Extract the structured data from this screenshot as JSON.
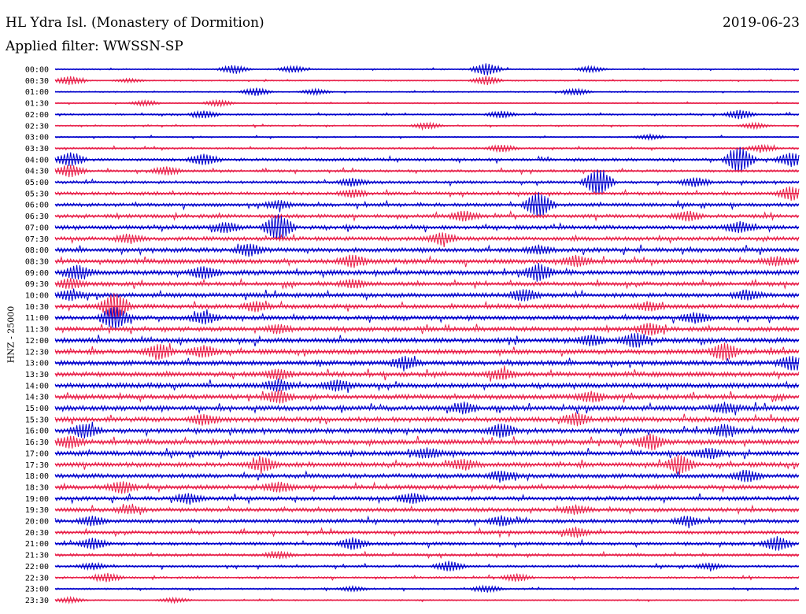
{
  "header": {
    "title": "HL Ydra Isl. (Monastery of Dormition)",
    "date": "2019-06-23",
    "filter": "Applied filter: WWSSN-SP"
  },
  "chart_data": {
    "type": "line",
    "title": "HL Ydra Isl. (Monastery of Dormition)",
    "ylabel": "HNZ - 25000",
    "xlabel": "",
    "colors": [
      "#0000cc",
      "#e8214a"
    ],
    "rows": [
      {
        "label": "00:00",
        "color": "#0000cc",
        "noise": 0.12,
        "events": [
          [
            0.58,
            1.4
          ],
          [
            0.24,
            0.9
          ],
          [
            0.32,
            0.7
          ],
          [
            0.72,
            0.6
          ]
        ]
      },
      {
        "label": "00:30",
        "color": "#e8214a",
        "noise": 0.1,
        "events": [
          [
            0.02,
            1.0
          ],
          [
            0.58,
            1.0
          ],
          [
            0.1,
            0.4
          ]
        ]
      },
      {
        "label": "01:00",
        "color": "#0000cc",
        "noise": 0.1,
        "events": [
          [
            0.27,
            0.9
          ],
          [
            0.35,
            0.6
          ],
          [
            0.7,
            0.7
          ]
        ]
      },
      {
        "label": "01:30",
        "color": "#e8214a",
        "noise": 0.1,
        "events": [
          [
            0.12,
            0.6
          ],
          [
            0.22,
            0.7
          ]
        ]
      },
      {
        "label": "02:00",
        "color": "#0000cc",
        "noise": 0.15,
        "events": [
          [
            0.2,
            0.8
          ],
          [
            0.6,
            0.7
          ],
          [
            0.92,
            1.0
          ]
        ]
      },
      {
        "label": "02:30",
        "color": "#e8214a",
        "noise": 0.12,
        "events": [
          [
            0.5,
            0.7
          ],
          [
            0.94,
            0.6
          ]
        ]
      },
      {
        "label": "03:00",
        "color": "#0000cc",
        "noise": 0.12,
        "events": [
          [
            0.8,
            0.5
          ]
        ]
      },
      {
        "label": "03:30",
        "color": "#e8214a",
        "noise": 0.18,
        "events": [
          [
            0.6,
            0.7
          ],
          [
            0.95,
            0.7
          ]
        ]
      },
      {
        "label": "04:00",
        "color": "#0000cc",
        "noise": 0.25,
        "events": [
          [
            0.92,
            3.0
          ],
          [
            0.02,
            1.5
          ],
          [
            0.2,
            1.2
          ],
          [
            0.99,
            1.5
          ]
        ]
      },
      {
        "label": "04:30",
        "color": "#e8214a",
        "noise": 0.22,
        "events": [
          [
            0.02,
            1.4
          ],
          [
            0.15,
            0.9
          ]
        ]
      },
      {
        "label": "05:00",
        "color": "#0000cc",
        "noise": 0.25,
        "events": [
          [
            0.73,
            3.0
          ],
          [
            0.4,
            0.8
          ],
          [
            0.86,
            1.0
          ]
        ]
      },
      {
        "label": "05:30",
        "color": "#e8214a",
        "noise": 0.28,
        "events": [
          [
            0.99,
            1.5
          ],
          [
            0.4,
            0.8
          ]
        ]
      },
      {
        "label": "06:00",
        "color": "#0000cc",
        "noise": 0.3,
        "events": [
          [
            0.65,
            2.8
          ],
          [
            0.3,
            0.9
          ]
        ]
      },
      {
        "label": "06:30",
        "color": "#e8214a",
        "noise": 0.32,
        "events": [
          [
            0.55,
            1.0
          ],
          [
            0.85,
            1.0
          ]
        ]
      },
      {
        "label": "07:00",
        "color": "#0000cc",
        "noise": 0.35,
        "events": [
          [
            0.3,
            3.0
          ],
          [
            0.23,
            1.0
          ],
          [
            0.92,
            1.2
          ]
        ]
      },
      {
        "label": "07:30",
        "color": "#e8214a",
        "noise": 0.35,
        "events": [
          [
            0.52,
            1.2
          ],
          [
            0.1,
            0.9
          ]
        ]
      },
      {
        "label": "08:00",
        "color": "#0000cc",
        "noise": 0.38,
        "events": [
          [
            0.26,
            1.2
          ],
          [
            0.65,
            0.8
          ]
        ]
      },
      {
        "label": "08:30",
        "color": "#e8214a",
        "noise": 0.4,
        "events": [
          [
            0.4,
            1.2
          ],
          [
            0.7,
            1.0
          ],
          [
            0.97,
            0.9
          ]
        ]
      },
      {
        "label": "09:00",
        "color": "#0000cc",
        "noise": 0.42,
        "events": [
          [
            0.65,
            1.8
          ],
          [
            0.03,
            1.4
          ],
          [
            0.2,
            1.2
          ]
        ]
      },
      {
        "label": "09:30",
        "color": "#e8214a",
        "noise": 0.35,
        "events": [
          [
            0.02,
            1.0
          ],
          [
            0.4,
            0.8
          ]
        ]
      },
      {
        "label": "10:00",
        "color": "#0000cc",
        "noise": 0.38,
        "events": [
          [
            0.63,
            1.2
          ],
          [
            0.93,
            1.0
          ],
          [
            0.02,
            1.0
          ]
        ]
      },
      {
        "label": "10:30",
        "color": "#e8214a",
        "noise": 0.38,
        "events": [
          [
            0.08,
            3.0
          ],
          [
            0.27,
            1.0
          ],
          [
            0.8,
            0.8
          ]
        ]
      },
      {
        "label": "11:00",
        "color": "#0000cc",
        "noise": 0.38,
        "events": [
          [
            0.08,
            2.5
          ],
          [
            0.2,
            1.2
          ],
          [
            0.86,
            1.0
          ]
        ]
      },
      {
        "label": "11:30",
        "color": "#e8214a",
        "noise": 0.38,
        "events": [
          [
            0.8,
            1.2
          ],
          [
            0.3,
            0.8
          ]
        ]
      },
      {
        "label": "12:00",
        "color": "#0000cc",
        "noise": 0.42,
        "events": [
          [
            0.78,
            1.5
          ],
          [
            0.72,
            1.0
          ]
        ]
      },
      {
        "label": "12:30",
        "color": "#e8214a",
        "noise": 0.42,
        "events": [
          [
            0.9,
            1.8
          ],
          [
            0.14,
            1.5
          ],
          [
            0.2,
            1.2
          ]
        ]
      },
      {
        "label": "13:00",
        "color": "#0000cc",
        "noise": 0.42,
        "events": [
          [
            0.47,
            1.2
          ],
          [
            0.99,
            1.4
          ]
        ]
      },
      {
        "label": "13:30",
        "color": "#e8214a",
        "noise": 0.42,
        "events": [
          [
            0.3,
            1.0
          ],
          [
            0.6,
            1.0
          ]
        ]
      },
      {
        "label": "14:00",
        "color": "#0000cc",
        "noise": 0.42,
        "events": [
          [
            0.3,
            1.2
          ],
          [
            0.38,
            1.0
          ]
        ]
      },
      {
        "label": "14:30",
        "color": "#e8214a",
        "noise": 0.42,
        "events": [
          [
            0.3,
            1.3
          ],
          [
            0.72,
            0.9
          ]
        ]
      },
      {
        "label": "15:00",
        "color": "#0000cc",
        "noise": 0.42,
        "events": [
          [
            0.55,
            1.0
          ],
          [
            0.9,
            1.0
          ]
        ]
      },
      {
        "label": "15:30",
        "color": "#e8214a",
        "noise": 0.42,
        "events": [
          [
            0.2,
            1.0
          ],
          [
            0.7,
            1.2
          ]
        ]
      },
      {
        "label": "16:00",
        "color": "#0000cc",
        "noise": 0.42,
        "events": [
          [
            0.6,
            1.4
          ],
          [
            0.04,
            1.4
          ],
          [
            0.9,
            1.2
          ]
        ]
      },
      {
        "label": "16:30",
        "color": "#e8214a",
        "noise": 0.42,
        "events": [
          [
            0.8,
            1.6
          ],
          [
            0.02,
            1.2
          ]
        ]
      },
      {
        "label": "17:00",
        "color": "#0000cc",
        "noise": 0.4,
        "events": [
          [
            0.5,
            1.0
          ],
          [
            0.88,
            1.0
          ]
        ]
      },
      {
        "label": "17:30",
        "color": "#e8214a",
        "noise": 0.4,
        "events": [
          [
            0.84,
            2.0
          ],
          [
            0.28,
            1.4
          ],
          [
            0.55,
            1.0
          ]
        ]
      },
      {
        "label": "18:00",
        "color": "#0000cc",
        "noise": 0.38,
        "events": [
          [
            0.93,
            1.2
          ],
          [
            0.6,
            1.0
          ]
        ]
      },
      {
        "label": "18:30",
        "color": "#e8214a",
        "noise": 0.38,
        "events": [
          [
            0.09,
            1.2
          ],
          [
            0.3,
            1.0
          ]
        ]
      },
      {
        "label": "19:00",
        "color": "#0000cc",
        "noise": 0.35,
        "events": [
          [
            0.48,
            1.0
          ],
          [
            0.18,
            1.0
          ]
        ]
      },
      {
        "label": "19:30",
        "color": "#e8214a",
        "noise": 0.35,
        "events": [
          [
            0.1,
            0.8
          ],
          [
            0.7,
            0.8
          ]
        ]
      },
      {
        "label": "20:00",
        "color": "#0000cc",
        "noise": 0.32,
        "events": [
          [
            0.05,
            1.0
          ],
          [
            0.6,
            1.0
          ],
          [
            0.85,
            1.0
          ]
        ]
      },
      {
        "label": "20:30",
        "color": "#e8214a",
        "noise": 0.3,
        "events": [
          [
            0.7,
            1.0
          ]
        ]
      },
      {
        "label": "21:00",
        "color": "#0000cc",
        "noise": 0.28,
        "events": [
          [
            0.05,
            1.2
          ],
          [
            0.4,
            1.2
          ],
          [
            0.97,
            1.5
          ]
        ]
      },
      {
        "label": "21:30",
        "color": "#e8214a",
        "noise": 0.25,
        "events": [
          [
            0.3,
            0.7
          ]
        ]
      },
      {
        "label": "22:00",
        "color": "#0000cc",
        "noise": 0.2,
        "events": [
          [
            0.53,
            1.1
          ],
          [
            0.05,
            0.7
          ],
          [
            0.88,
            0.6
          ]
        ]
      },
      {
        "label": "22:30",
        "color": "#e8214a",
        "noise": 0.18,
        "events": [
          [
            0.07,
            0.9
          ],
          [
            0.62,
            0.8
          ]
        ]
      },
      {
        "label": "23:00",
        "color": "#0000cc",
        "noise": 0.15,
        "events": [
          [
            0.58,
            0.7
          ],
          [
            0.4,
            0.5
          ]
        ]
      },
      {
        "label": "23:30",
        "color": "#e8214a",
        "noise": 0.12,
        "events": [
          [
            0.02,
            0.6
          ],
          [
            0.16,
            0.5
          ]
        ]
      }
    ]
  }
}
